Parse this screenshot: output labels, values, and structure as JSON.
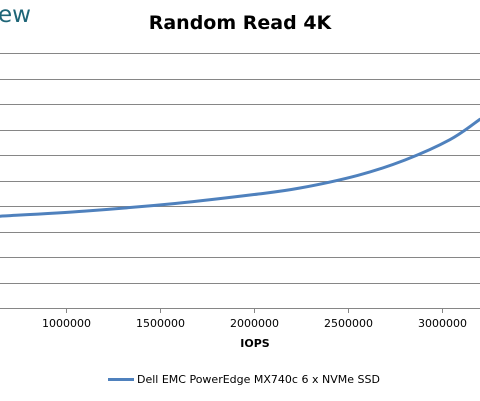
{
  "watermark": "ew",
  "chart_data": {
    "type": "line",
    "title": "Random Read 4K",
    "xlabel": "IOPS",
    "ylabel": "",
    "xlim": [
      650000,
      3200000
    ],
    "xticks": [
      1000000,
      1500000,
      2000000,
      2500000,
      3000000
    ],
    "xtick_labels": [
      "1000000",
      "1500000",
      "2000000",
      "2500000",
      "3000000"
    ],
    "gridlines": 10,
    "grid": true,
    "legend_position": "bottom",
    "colors": {
      "series": "#4f81bd",
      "grid": "#868686"
    },
    "series": [
      {
        "name": "Dell EMC PowerEdge MX740c 6 x NVMe SSD",
        "x": [
          650000,
          1100000,
          1580000,
          2000000,
          2240000,
          2550000,
          2800000,
          3040000,
          3200000
        ],
        "y": [
          0.36,
          0.38,
          0.41,
          0.445,
          0.47,
          0.52,
          0.58,
          0.66,
          0.74
        ]
      }
    ]
  }
}
